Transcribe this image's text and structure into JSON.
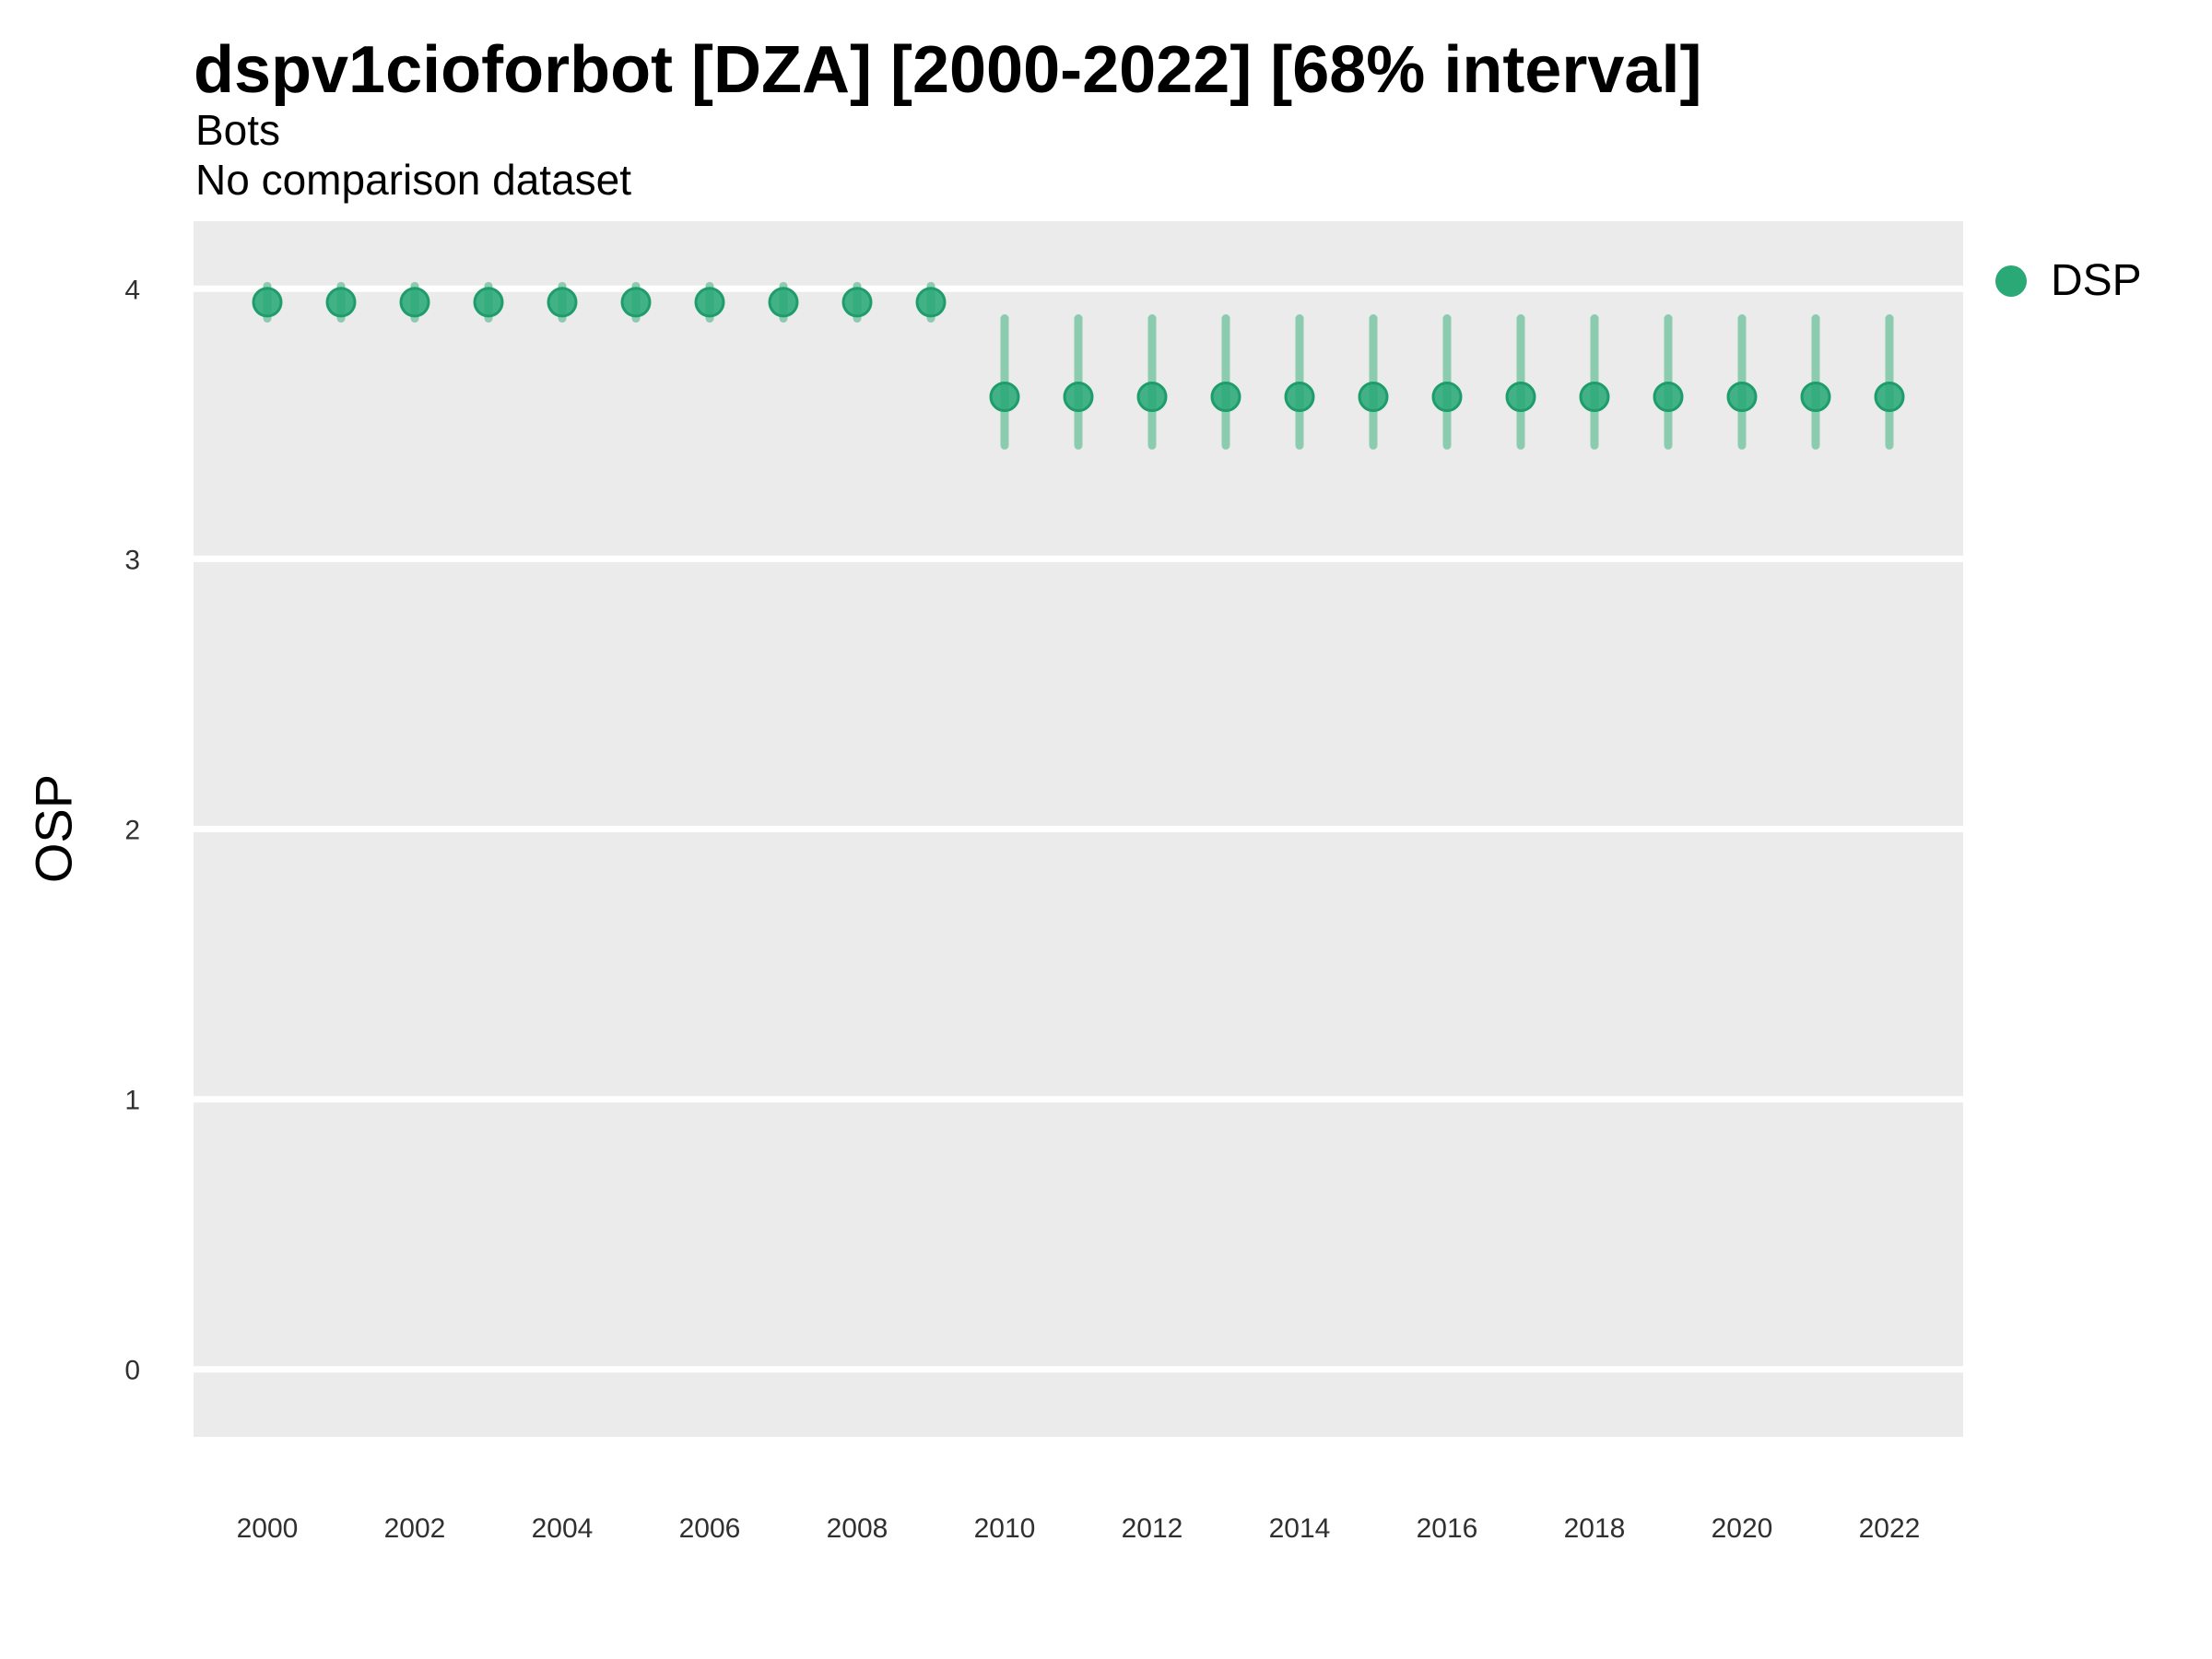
{
  "header": {
    "title": "dspv1cioforbot [DZA] [2000-2022] [68% interval]",
    "subtitle_line1": "Bots",
    "subtitle_line2": "No comparison dataset"
  },
  "chart_data": {
    "type": "scatter",
    "title": "dspv1cioforbot [DZA] [2000-2022] [68% interval]",
    "subtitle": [
      "Bots",
      "No comparison dataset"
    ],
    "xlabel": "",
    "ylabel": "OSP",
    "interval_level": "68%",
    "x": [
      2000,
      2001,
      2002,
      2003,
      2004,
      2005,
      2006,
      2007,
      2008,
      2009,
      2010,
      2011,
      2012,
      2013,
      2014,
      2015,
      2016,
      2017,
      2018,
      2019,
      2020,
      2021,
      2022
    ],
    "series": [
      {
        "name": "DSP",
        "values": [
          3.95,
          3.95,
          3.95,
          3.95,
          3.95,
          3.95,
          3.95,
          3.95,
          3.95,
          3.95,
          3.6,
          3.6,
          3.6,
          3.6,
          3.6,
          3.6,
          3.6,
          3.6,
          3.6,
          3.6,
          3.6,
          3.6,
          3.6
        ],
        "lower_68": [
          3.89,
          3.89,
          3.89,
          3.89,
          3.89,
          3.89,
          3.89,
          3.89,
          3.89,
          3.89,
          3.42,
          3.42,
          3.42,
          3.42,
          3.42,
          3.42,
          3.42,
          3.42,
          3.42,
          3.42,
          3.42,
          3.42,
          3.42
        ],
        "upper_68": [
          4.01,
          4.01,
          4.01,
          4.01,
          4.01,
          4.01,
          4.01,
          4.01,
          4.01,
          4.01,
          3.89,
          3.89,
          3.89,
          3.89,
          3.89,
          3.89,
          3.89,
          3.89,
          3.89,
          3.89,
          3.89,
          3.89,
          3.89
        ]
      }
    ],
    "x_ticks": [
      2000,
      2002,
      2004,
      2006,
      2008,
      2010,
      2012,
      2014,
      2016,
      2018,
      2020,
      2022
    ],
    "y_ticks": [
      0,
      1,
      2,
      3,
      4
    ],
    "xlim": [
      1999,
      2023
    ],
    "ylim": [
      -0.25,
      4.25
    ],
    "grid": "horizontal-major-white",
    "legend_position": "right"
  },
  "legend": {
    "items": [
      {
        "label": "DSP",
        "marker_color": "#2aa876"
      }
    ]
  },
  "colors": {
    "point_fill": "#2aa876",
    "point_stroke": "#1e9d6b",
    "interval_bar": "#8bcbb0",
    "panel_background": "#ebebeb",
    "gridline": "#ffffff",
    "tick_text": "#303030",
    "text": "#000000"
  }
}
